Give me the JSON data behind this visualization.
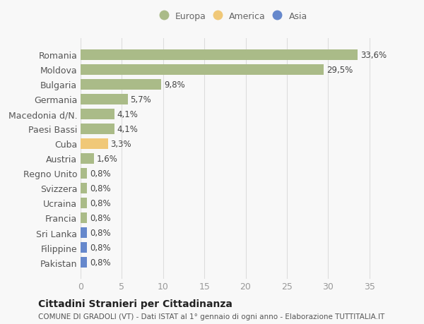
{
  "categories": [
    "Pakistan",
    "Filippine",
    "Sri Lanka",
    "Francia",
    "Ucraina",
    "Svizzera",
    "Regno Unito",
    "Austria",
    "Cuba",
    "Paesi Bassi",
    "Macedonia d/N.",
    "Germania",
    "Bulgaria",
    "Moldova",
    "Romania"
  ],
  "values": [
    0.8,
    0.8,
    0.8,
    0.8,
    0.8,
    0.8,
    0.8,
    1.6,
    3.3,
    4.1,
    4.1,
    5.7,
    9.8,
    29.5,
    33.6
  ],
  "colors": [
    "#6688cc",
    "#6688cc",
    "#6688cc",
    "#aabb88",
    "#aabb88",
    "#aabb88",
    "#aabb88",
    "#aabb88",
    "#f0c878",
    "#aabb88",
    "#aabb88",
    "#aabb88",
    "#aabb88",
    "#aabb88",
    "#aabb88"
  ],
  "labels": [
    "0,8%",
    "0,8%",
    "0,8%",
    "0,8%",
    "0,8%",
    "0,8%",
    "0,8%",
    "1,6%",
    "3,3%",
    "4,1%",
    "4,1%",
    "5,7%",
    "9,8%",
    "29,5%",
    "33,6%"
  ],
  "legend_labels": [
    "Europa",
    "America",
    "Asia"
  ],
  "legend_colors": [
    "#aabb88",
    "#f0c878",
    "#6688cc"
  ],
  "title": "Cittadini Stranieri per Cittadinanza",
  "subtitle": "COMUNE DI GRADOLI (VT) - Dati ISTAT al 1° gennaio di ogni anno - Elaborazione TUTTITALIA.IT",
  "xlim": [
    0,
    37
  ],
  "xticks": [
    0,
    5,
    10,
    15,
    20,
    25,
    30,
    35
  ],
  "background_color": "#f8f8f8",
  "plot_bg_color": "#f8f8f8",
  "grid_color": "#dddddd",
  "bar_height": 0.72,
  "label_fontsize": 8.5,
  "tick_fontsize": 9
}
